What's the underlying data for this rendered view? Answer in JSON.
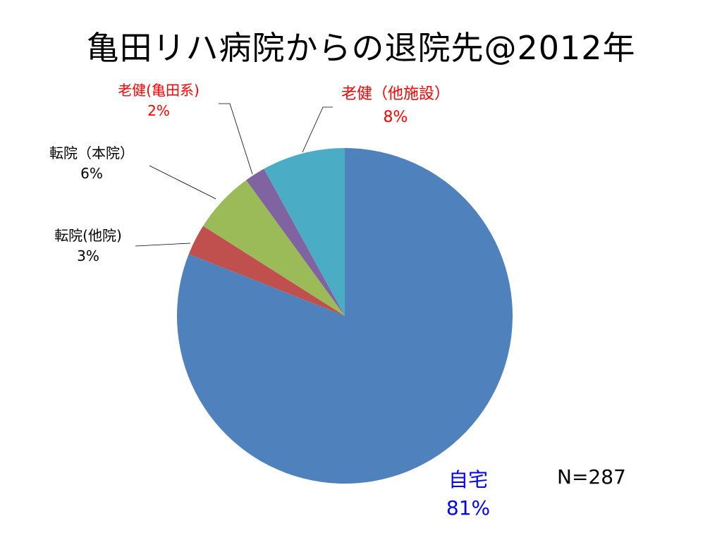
{
  "chart_data": {
    "type": "pie",
    "title": "亀田リハ病院からの退院先@2012年",
    "note": "N=287",
    "slices": [
      {
        "label": "自宅",
        "value": 81,
        "value_label": "81%",
        "color": "#4F81BD",
        "label_color": "#0000FF"
      },
      {
        "label": "転院(他院)",
        "value": 3,
        "value_label": "3%",
        "color": "#C0504D",
        "label_color": "#000000"
      },
      {
        "label": "転院（本院）",
        "value": 6,
        "value_label": "6%",
        "color": "#9BBB59",
        "label_color": "#000000"
      },
      {
        "label": "老健(亀田系)",
        "value": 2,
        "value_label": "2%",
        "color": "#8064A2",
        "label_color": "#FF0000"
      },
      {
        "label": "老健（他施設）",
        "value": 8,
        "value_label": "8%",
        "color": "#4BACC6",
        "label_color": "#FF0000"
      }
    ]
  }
}
